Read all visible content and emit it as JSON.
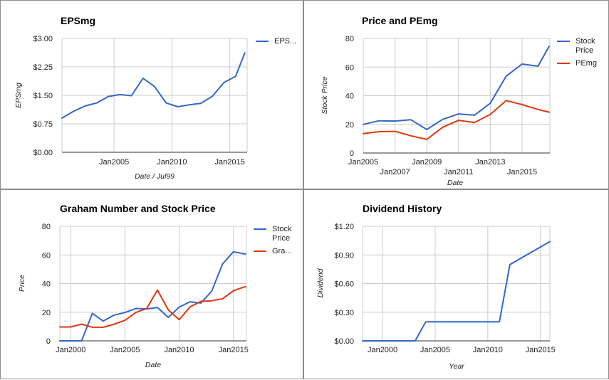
{
  "colors": {
    "blue": "#3366cc",
    "red": "#dc3912"
  },
  "chart_data": [
    {
      "type": "line",
      "title": "EPSmg",
      "xlabel": "Date / Jul99",
      "ylabel": "EPSmg",
      "x_ticks": [
        2005,
        2010,
        2015
      ],
      "x_tick_labels": [
        "Jan2005",
        "Jan2010",
        "Jan2015"
      ],
      "xlim": [
        2000.5,
        2016.5
      ],
      "y_ticks": [
        0,
        0.75,
        1.5,
        2.25,
        3.0
      ],
      "y_tick_labels": [
        "$0.00",
        "$0.75",
        "$1.50",
        "$2.25",
        "$3.00"
      ],
      "ylim": [
        0,
        3.0
      ],
      "legend_position": "right",
      "grid": true,
      "series": [
        {
          "name": "EPS...",
          "color": "#3366cc",
          "x": [
            2000.5,
            2001.5,
            2002.5,
            2003.5,
            2004.5,
            2005.5,
            2006.5,
            2007.5,
            2008.5,
            2009.5,
            2010.5,
            2011.5,
            2012.5,
            2013.5,
            2014.5,
            2015.5,
            2016.3
          ],
          "values": [
            0.9,
            1.08,
            1.22,
            1.3,
            1.47,
            1.52,
            1.49,
            1.95,
            1.73,
            1.3,
            1.2,
            1.25,
            1.29,
            1.48,
            1.84,
            2.0,
            2.62
          ]
        }
      ]
    },
    {
      "type": "line",
      "title": "Price and PEmg",
      "xlabel": "Date",
      "ylabel": "Stock Price",
      "x_ticks": [
        2005,
        2007,
        2009,
        2011,
        2013,
        2015
      ],
      "x_tick_labels": [
        "Jan2005",
        "Jan2007",
        "Jan2009",
        "Jan2011",
        "Jan2013",
        "Jan2015"
      ],
      "xlim": [
        2005,
        2016.75
      ],
      "y_ticks": [
        0,
        20,
        40,
        60,
        80
      ],
      "y_tick_labels": [
        "0",
        "20",
        "40",
        "60",
        "80"
      ],
      "ylim": [
        0,
        80
      ],
      "legend_position": "right",
      "grid": true,
      "series": [
        {
          "name_lines": [
            "Stock",
            "Price"
          ],
          "color": "#3366cc",
          "x": [
            2005,
            2006,
            2007,
            2008,
            2009,
            2010,
            2011,
            2012,
            2013,
            2014,
            2015,
            2016,
            2016.7
          ],
          "values": [
            20,
            22.5,
            22.3,
            23.2,
            16.4,
            23.5,
            27.3,
            26.4,
            34.8,
            53.7,
            62.1,
            60.6,
            74.5
          ]
        },
        {
          "name_lines": [
            "PEmg"
          ],
          "color": "#dc3912",
          "x": [
            2005,
            2006,
            2007,
            2008,
            2009,
            2010,
            2011,
            2012,
            2013,
            2014,
            2015,
            2016,
            2016.7
          ],
          "values": [
            13.5,
            14.9,
            15.1,
            12,
            9.5,
            18,
            22.8,
            21.2,
            27,
            36.6,
            33.8,
            30.4,
            28.5
          ]
        }
      ]
    },
    {
      "type": "line",
      "title": "Graham Number and Stock Price",
      "xlabel": "Date",
      "ylabel": "Price",
      "x_ticks": [
        2000,
        2005,
        2010,
        2015
      ],
      "x_tick_labels": [
        "Jan2000",
        "Jan2005",
        "Jan2010",
        "Jan2015"
      ],
      "xlim": [
        1999,
        2016.2
      ],
      "y_ticks": [
        0,
        20,
        40,
        60,
        80
      ],
      "y_tick_labels": [
        "0",
        "20",
        "40",
        "60",
        "80"
      ],
      "ylim": [
        0,
        80
      ],
      "legend_position": "right",
      "grid": true,
      "series": [
        {
          "name_lines": [
            "Stock",
            "Price"
          ],
          "color": "#3366cc",
          "x": [
            1999,
            2000,
            2001,
            2002,
            2003,
            2004,
            2005,
            2006,
            2007,
            2008,
            2009,
            2010,
            2011,
            2012,
            2013,
            2014,
            2015,
            2016.1
          ],
          "values": [
            0,
            0,
            0,
            19.2,
            13.8,
            18,
            19.8,
            22.6,
            22.3,
            23.3,
            16.4,
            23.6,
            27.3,
            26.4,
            34.8,
            53.7,
            62.2,
            60.6
          ]
        },
        {
          "name_lines": [
            "Gra..."
          ],
          "color": "#dc3912",
          "x": [
            1999,
            2000,
            2001,
            2002,
            2003,
            2004,
            2005,
            2006,
            2007,
            2008,
            2009,
            2010,
            2011,
            2012,
            2013,
            2014,
            2015,
            2016.1
          ],
          "values": [
            9.7,
            9.7,
            11.7,
            9.5,
            9.5,
            11.7,
            14.3,
            19.8,
            22.6,
            35.5,
            21.6,
            14.8,
            23.7,
            27.6,
            28,
            29.4,
            35,
            37.9
          ]
        }
      ]
    },
    {
      "type": "line",
      "title": "Dividend History",
      "xlabel": "Year",
      "ylabel": "Dividend",
      "x_ticks": [
        2000,
        2005,
        2010,
        2015
      ],
      "x_tick_labels": [
        "Jan2000",
        "Jan2005",
        "Jan2010",
        "Jan2015"
      ],
      "xlim": [
        1998.1,
        2015.9
      ],
      "y_ticks": [
        0,
        0.3,
        0.6,
        0.9,
        1.2
      ],
      "y_tick_labels": [
        "$0.00",
        "$0.30",
        "$0.60",
        "$0.90",
        "$1.20"
      ],
      "ylim": [
        0,
        1.2
      ],
      "grid": true,
      "series": [
        {
          "color": "#3366cc",
          "x": [
            1998.1,
            2000,
            2003.1,
            2004.1,
            2011.1,
            2012.1,
            2015.9
          ],
          "values": [
            0,
            0,
            0,
            0.2,
            0.2,
            0.8,
            1.04
          ]
        }
      ]
    }
  ]
}
